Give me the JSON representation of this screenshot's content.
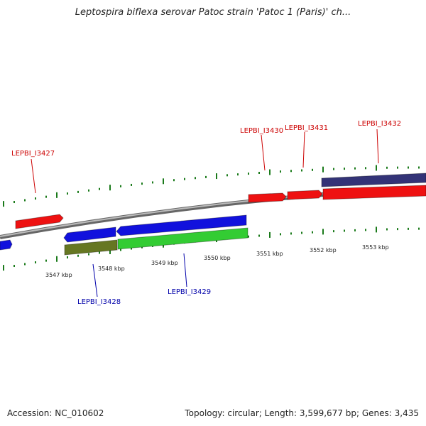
{
  "title": "Leptospira biflexa serovar Patoc strain 'Patoc 1 (Paris)' ch...",
  "footer": {
    "accession": "Accession: NC_010602",
    "summary": "Topology: circular; Length: 3,599,677 bp; Genes: 3,435"
  },
  "colors": {
    "forward_label": "#cc0000",
    "reverse_label": "#0000aa",
    "tick": "#1a7a1a",
    "backbone": "#888888",
    "gene_red": "#ee1111",
    "gene_blue": "#1111dd",
    "gene_green": "#33cc33",
    "gene_olive": "#667722",
    "gene_navy": "#333377"
  },
  "scale": {
    "unit": "kbp",
    "ticks": [
      "3547 kbp",
      "3548 kbp",
      "3549 kbp",
      "3550 kbp",
      "3551 kbp",
      "3552 kbp",
      "3553 kbp"
    ]
  },
  "genes": {
    "forward": [
      "LEPBI_I3427",
      "LEPBI_I3430",
      "LEPBI_I3431",
      "LEPBI_I3432"
    ],
    "reverse": [
      "LEPBI_I3428",
      "LEPBI_I3429"
    ]
  }
}
